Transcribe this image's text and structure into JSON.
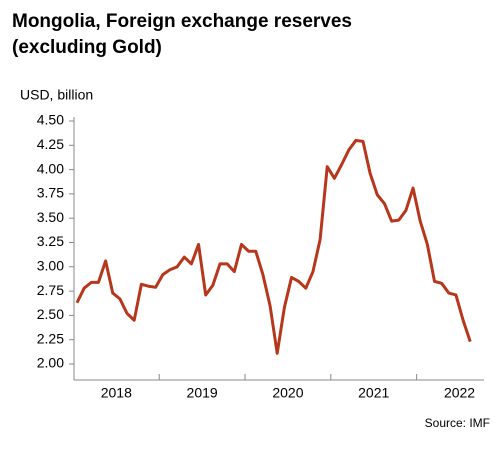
{
  "chart_data": {
    "type": "line",
    "title": [
      "Mongolia, Foreign exchange reserves",
      "(excluding Gold)"
    ],
    "y_label": "USD, billion",
    "source": "Source: IMF",
    "categories": [
      null,
      null,
      null,
      null,
      null,
      null,
      "2018",
      null,
      null,
      null,
      null,
      null,
      null,
      null,
      null,
      null,
      null,
      null,
      "2019",
      null,
      null,
      null,
      null,
      null,
      null,
      null,
      null,
      null,
      null,
      null,
      "2020",
      null,
      null,
      null,
      null,
      null,
      null,
      null,
      null,
      null,
      null,
      null,
      "2021",
      null,
      null,
      null,
      null,
      null,
      null,
      null,
      null,
      null,
      null,
      null,
      "2022",
      null
    ],
    "series": [
      {
        "color": "#b7371d",
        "values": [
          2.63,
          2.78,
          2.84,
          2.84,
          3.06,
          2.73,
          2.67,
          2.52,
          2.45,
          2.82,
          2.8,
          2.79,
          2.92,
          2.97,
          3.0,
          3.1,
          3.03,
          3.23,
          2.71,
          2.81,
          3.03,
          3.03,
          2.95,
          3.23,
          3.16,
          3.16,
          2.92,
          2.6,
          2.11,
          2.58,
          2.89,
          2.85,
          2.78,
          2.95,
          3.28,
          4.03,
          3.91,
          4.05,
          4.2,
          4.3,
          4.29,
          3.96,
          3.74,
          3.65,
          3.47,
          3.48,
          3.58,
          3.81,
          3.47,
          3.23,
          2.85,
          2.83,
          2.73,
          2.71,
          2.45,
          2.23
        ]
      }
    ],
    "ylim": [
      2.0,
      4.5
    ],
    "yticks": [
      {
        "value": 2,
        "label": "2.00"
      },
      {
        "value": 2.25,
        "label": "2.25"
      },
      {
        "value": 2.5,
        "label": "2.50"
      },
      {
        "value": 2.75,
        "label": "2.75"
      },
      {
        "value": 3,
        "label": "3.00"
      },
      {
        "value": 3.25,
        "label": "3.25"
      },
      {
        "value": 3.5,
        "label": "3.50"
      },
      {
        "value": 3.75,
        "label": "3.75"
      },
      {
        "value": 4,
        "label": "4.00"
      },
      {
        "value": 4.25,
        "label": "4.25"
      },
      {
        "value": 4.5,
        "label": "4.50"
      }
    ]
  }
}
